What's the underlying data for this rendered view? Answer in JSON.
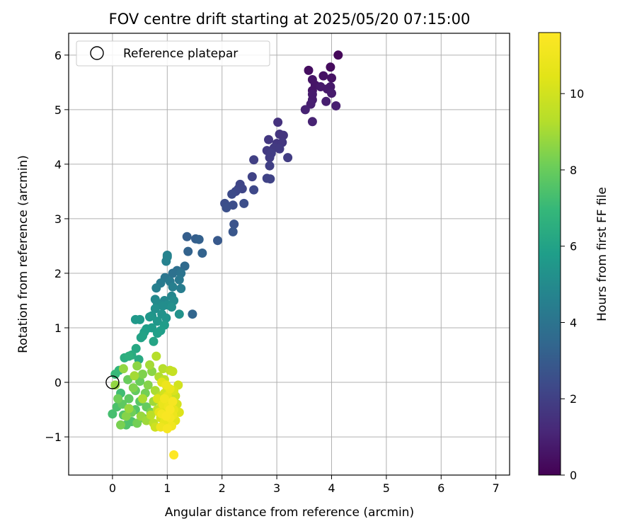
{
  "chart_data": {
    "type": "scatter",
    "title": "FOV centre drift starting at 2025/05/20 07:15:00",
    "xlabel": "Angular distance from reference (arcmin)",
    "ylabel": "Rotation from reference (arcmin)",
    "xlim": [
      -0.8,
      7.25
    ],
    "ylim": [
      -1.7,
      6.4
    ],
    "xticks": [
      0,
      1,
      2,
      3,
      4,
      5,
      6,
      7
    ],
    "yticks": [
      -1,
      0,
      1,
      2,
      3,
      4,
      5,
      6
    ],
    "grid": true,
    "legend": {
      "placement": "top-left",
      "entries": [
        "Reference platepar"
      ]
    },
    "reference_point": {
      "x": 0,
      "y": 0,
      "label": "Reference platepar"
    },
    "colorbar": {
      "label": "Hours from first FF file",
      "min": 0,
      "max": 11.6,
      "ticks": [
        0,
        2,
        4,
        6,
        8,
        10
      ],
      "colormap": "viridis"
    },
    "series": [
      {
        "fields": [
          "x",
          "y",
          "hours"
        ],
        "points": [
          [
            4.12,
            6.0,
            0.2
          ],
          [
            3.98,
            5.78,
            0.3
          ],
          [
            3.58,
            5.72,
            0.4
          ],
          [
            3.85,
            5.62,
            0.5
          ],
          [
            4.0,
            5.58,
            0.5
          ],
          [
            3.65,
            5.55,
            0.6
          ],
          [
            3.7,
            5.45,
            0.6
          ],
          [
            3.65,
            5.35,
            0.6
          ],
          [
            3.8,
            5.42,
            0.7
          ],
          [
            3.98,
            5.42,
            0.7
          ],
          [
            3.92,
            5.38,
            0.7
          ],
          [
            3.65,
            5.28,
            0.8
          ],
          [
            4.0,
            5.3,
            0.8
          ],
          [
            3.65,
            5.18,
            0.8
          ],
          [
            3.9,
            5.15,
            0.9
          ],
          [
            3.62,
            5.1,
            0.9
          ],
          [
            4.08,
            5.07,
            0.9
          ],
          [
            3.52,
            5.0,
            1.0
          ],
          [
            3.65,
            4.78,
            1.0
          ],
          [
            3.02,
            4.77,
            1.5
          ],
          [
            3.05,
            4.55,
            1.6
          ],
          [
            3.12,
            4.53,
            1.6
          ],
          [
            2.85,
            4.45,
            1.7
          ],
          [
            3.0,
            4.38,
            1.7
          ],
          [
            3.1,
            4.4,
            1.7
          ],
          [
            2.95,
            4.3,
            1.8
          ],
          [
            2.82,
            4.25,
            1.8
          ],
          [
            3.05,
            4.28,
            1.8
          ],
          [
            2.9,
            4.2,
            1.9
          ],
          [
            2.87,
            4.12,
            1.9
          ],
          [
            3.2,
            4.12,
            1.9
          ],
          [
            2.58,
            4.08,
            2.0
          ],
          [
            2.87,
            3.97,
            2.0
          ],
          [
            2.55,
            3.77,
            2.1
          ],
          [
            2.82,
            3.74,
            2.1
          ],
          [
            2.88,
            3.73,
            2.1
          ],
          [
            2.33,
            3.63,
            2.2
          ],
          [
            2.3,
            3.55,
            2.2
          ],
          [
            2.37,
            3.55,
            2.2
          ],
          [
            2.58,
            3.53,
            2.3
          ],
          [
            2.25,
            3.5,
            2.3
          ],
          [
            2.18,
            3.45,
            2.4
          ],
          [
            2.05,
            3.28,
            2.5
          ],
          [
            2.4,
            3.28,
            2.5
          ],
          [
            2.2,
            3.25,
            2.5
          ],
          [
            2.08,
            3.2,
            2.6
          ],
          [
            2.22,
            2.9,
            2.7
          ],
          [
            2.2,
            2.76,
            2.8
          ],
          [
            1.92,
            2.6,
            2.9
          ],
          [
            1.36,
            2.67,
            3.1
          ],
          [
            1.52,
            2.63,
            3.1
          ],
          [
            1.58,
            2.62,
            3.2
          ],
          [
            1.38,
            2.4,
            3.3
          ],
          [
            1.64,
            2.37,
            3.3
          ],
          [
            1.46,
            1.25,
            3.4
          ],
          [
            1.32,
            2.13,
            3.6
          ],
          [
            1.18,
            2.05,
            3.8
          ],
          [
            1.1,
            2.0,
            3.9
          ],
          [
            1.25,
            2.0,
            4.0
          ],
          [
            0.96,
            1.92,
            4.1
          ],
          [
            1.22,
            1.88,
            4.2
          ],
          [
            0.88,
            1.82,
            4.3
          ],
          [
            1.05,
            1.85,
            4.3
          ],
          [
            1.25,
            1.72,
            4.4
          ],
          [
            0.8,
            1.73,
            4.5
          ],
          [
            1.1,
            1.75,
            4.5
          ],
          [
            0.98,
            2.22,
            4.6
          ],
          [
            1.0,
            2.33,
            4.6
          ],
          [
            1.0,
            2.3,
            4.7
          ],
          [
            1.08,
            1.58,
            4.8
          ],
          [
            0.78,
            1.52,
            4.9
          ],
          [
            0.95,
            1.5,
            4.9
          ],
          [
            1.12,
            1.5,
            5.0
          ],
          [
            0.82,
            1.45,
            5.0
          ],
          [
            1.0,
            1.42,
            5.1
          ],
          [
            0.92,
            1.4,
            5.1
          ],
          [
            1.08,
            1.38,
            5.2
          ],
          [
            0.78,
            1.35,
            5.2
          ],
          [
            1.22,
            1.25,
            5.3
          ],
          [
            0.9,
            1.25,
            5.3
          ],
          [
            0.72,
            1.22,
            5.4
          ],
          [
            0.98,
            1.18,
            5.4
          ],
          [
            0.68,
            1.2,
            5.5
          ],
          [
            0.82,
            1.12,
            5.5
          ],
          [
            0.42,
            1.15,
            5.6
          ],
          [
            0.5,
            1.15,
            5.6
          ],
          [
            0.95,
            1.05,
            5.7
          ],
          [
            0.72,
            1.0,
            5.7
          ],
          [
            0.62,
            0.98,
            5.8
          ],
          [
            0.88,
            0.95,
            5.8
          ],
          [
            0.58,
            0.92,
            5.9
          ],
          [
            0.82,
            0.9,
            5.9
          ],
          [
            0.52,
            0.82,
            6.0
          ],
          [
            0.55,
            0.85,
            6.0
          ],
          [
            0.75,
            0.75,
            6.1
          ],
          [
            0.43,
            0.62,
            6.2
          ],
          [
            0.48,
            0.42,
            6.3
          ],
          [
            0.35,
            0.5,
            6.4
          ],
          [
            0.22,
            0.45,
            6.5
          ],
          [
            0.3,
            0.48,
            6.6
          ],
          [
            0.12,
            0.22,
            6.8
          ],
          [
            0.05,
            0.15,
            7.0
          ],
          [
            0.15,
            -0.2,
            7.2
          ],
          [
            0.0,
            -0.58,
            7.3
          ],
          [
            0.08,
            -0.45,
            7.4
          ],
          [
            0.25,
            -0.78,
            7.5
          ],
          [
            0.35,
            -0.72,
            7.5
          ],
          [
            0.42,
            -0.5,
            7.6
          ],
          [
            0.2,
            -0.6,
            7.6
          ],
          [
            0.55,
            -0.65,
            7.7
          ],
          [
            0.5,
            -0.35,
            7.7
          ],
          [
            0.3,
            -0.3,
            7.8
          ],
          [
            0.18,
            -0.4,
            7.8
          ],
          [
            0.42,
            -0.15,
            7.9
          ],
          [
            0.62,
            -0.45,
            7.9
          ],
          [
            0.28,
            0.05,
            8.0
          ],
          [
            0.5,
            0.02,
            8.0
          ],
          [
            0.1,
            -0.3,
            8.1
          ],
          [
            0.35,
            -0.55,
            8.1
          ],
          [
            0.6,
            -0.2,
            8.2
          ],
          [
            0.45,
            -0.75,
            8.2
          ],
          [
            0.15,
            -0.78,
            8.3
          ],
          [
            0.7,
            -0.55,
            8.3
          ],
          [
            0.38,
            -0.1,
            8.4
          ],
          [
            0.55,
            0.15,
            8.4
          ],
          [
            0.25,
            -0.62,
            8.5
          ],
          [
            0.65,
            -0.05,
            8.5
          ],
          [
            0.45,
            0.3,
            8.6
          ],
          [
            0.72,
            0.2,
            8.6
          ],
          [
            0.05,
            -0.05,
            8.7
          ],
          [
            0.2,
            0.25,
            8.7
          ],
          [
            0.3,
            -0.48,
            8.8
          ],
          [
            0.52,
            -0.62,
            8.8
          ],
          [
            0.75,
            -0.35,
            8.9
          ],
          [
            0.62,
            -0.7,
            8.9
          ],
          [
            0.4,
            0.12,
            9.0
          ],
          [
            0.68,
            0.32,
            9.0
          ],
          [
            0.78,
            -0.15,
            9.1
          ],
          [
            0.55,
            -0.3,
            9.1
          ],
          [
            0.85,
            0.1,
            9.2
          ],
          [
            0.8,
            0.48,
            9.3
          ],
          [
            0.92,
            0.25,
            9.3
          ],
          [
            0.7,
            -0.6,
            9.4
          ],
          [
            0.88,
            -0.25,
            9.4
          ],
          [
            0.95,
            0.05,
            9.5
          ],
          [
            0.75,
            -0.75,
            9.5
          ],
          [
            1.05,
            0.22,
            9.6
          ],
          [
            0.82,
            -0.5,
            9.6
          ],
          [
            1.0,
            -0.1,
            9.7
          ],
          [
            1.1,
            0.2,
            9.7
          ],
          [
            0.9,
            -0.4,
            9.8
          ],
          [
            1.15,
            -0.25,
            9.8
          ],
          [
            0.78,
            -0.82,
            9.9
          ],
          [
            1.05,
            -0.55,
            9.9
          ],
          [
            1.2,
            -0.05,
            10.0
          ],
          [
            0.95,
            -0.2,
            10.0
          ],
          [
            1.18,
            -0.4,
            10.1
          ],
          [
            0.88,
            -0.65,
            10.1
          ],
          [
            1.0,
            -0.78,
            10.2
          ],
          [
            1.12,
            -0.15,
            10.2
          ],
          [
            0.82,
            -0.3,
            10.3
          ],
          [
            1.22,
            -0.55,
            10.3
          ],
          [
            0.95,
            -0.5,
            10.4
          ],
          [
            1.08,
            -0.35,
            10.4
          ],
          [
            0.9,
            0.0,
            10.5
          ],
          [
            1.15,
            -0.7,
            10.5
          ],
          [
            1.0,
            -0.25,
            10.6
          ],
          [
            0.85,
            -0.55,
            10.6
          ],
          [
            1.12,
            -0.5,
            10.7
          ],
          [
            0.95,
            -0.72,
            10.7
          ],
          [
            1.05,
            -0.12,
            10.8
          ],
          [
            0.92,
            -0.4,
            10.8
          ],
          [
            1.1,
            -0.6,
            10.9
          ],
          [
            0.98,
            -0.05,
            10.9
          ],
          [
            1.02,
            -0.45,
            11.0
          ],
          [
            0.88,
            -0.82,
            11.0
          ],
          [
            1.08,
            -0.8,
            11.1
          ],
          [
            0.95,
            -0.3,
            11.1
          ],
          [
            1.05,
            -0.65,
            11.2
          ],
          [
            0.9,
            -0.58,
            11.2
          ],
          [
            1.0,
            -0.85,
            11.3
          ],
          [
            1.1,
            -0.35,
            11.3
          ],
          [
            0.98,
            -0.62,
            11.4
          ],
          [
            1.05,
            -0.5,
            11.4
          ],
          [
            1.12,
            -1.33,
            11.6
          ]
        ]
      }
    ]
  }
}
